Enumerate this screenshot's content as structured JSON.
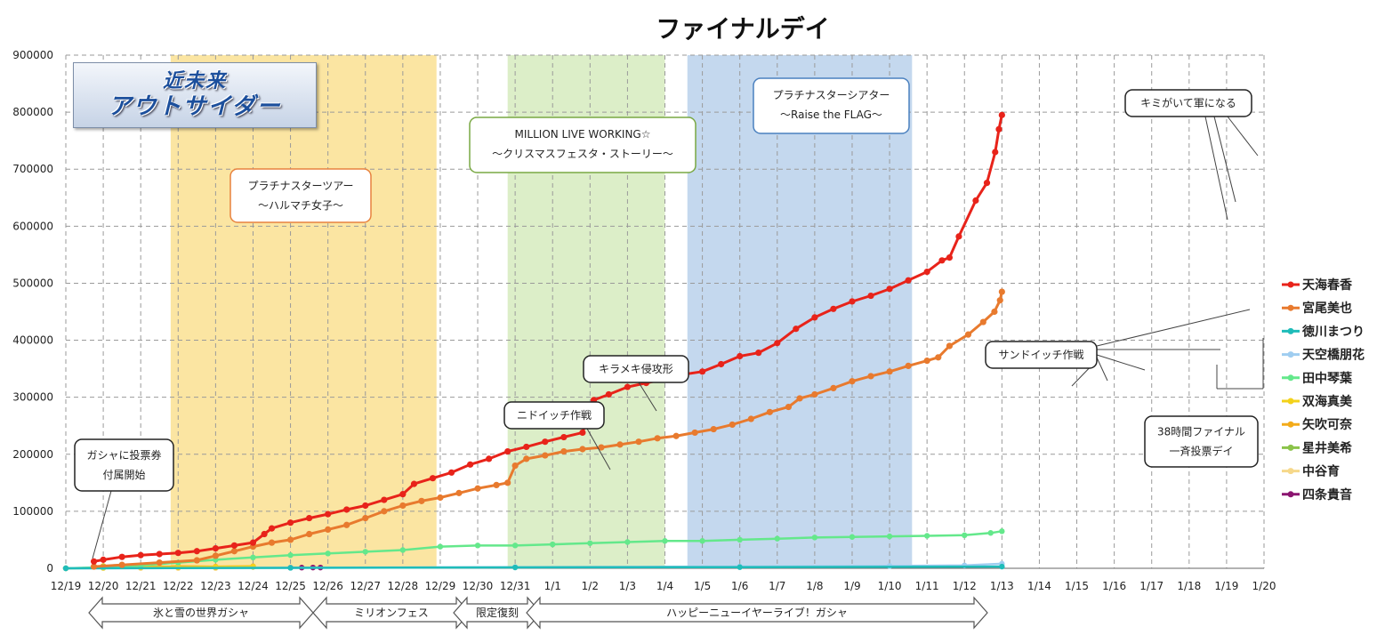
{
  "chart_data": {
    "type": "line",
    "title": "ファイナルデイ",
    "ylim": [
      0,
      900000
    ],
    "yticks": [
      "0",
      "100000",
      "200000",
      "300000",
      "400000",
      "500000",
      "600000",
      "700000",
      "800000",
      "900000"
    ],
    "categories": [
      "12/19",
      "12/20",
      "12/21",
      "12/22",
      "12/23",
      "12/24",
      "12/25",
      "12/26",
      "12/27",
      "12/28",
      "12/29",
      "12/30",
      "12/31",
      "1/1",
      "1/2",
      "1/3",
      "1/4",
      "1/5",
      "1/6",
      "1/7",
      "1/8",
      "1/9",
      "1/10",
      "1/11",
      "1/12",
      "1/13",
      "1/14",
      "1/15",
      "1/16",
      "1/17",
      "1/18",
      "1/19",
      "1/20"
    ],
    "grid": true,
    "legend_position": "right",
    "series": [
      {
        "name": "天海春香",
        "color": "#e8231a",
        "points": [
          [
            0.75,
            12000
          ],
          [
            1,
            15000
          ],
          [
            1.5,
            20000
          ],
          [
            2,
            23000
          ],
          [
            2.5,
            25000
          ],
          [
            3,
            27000
          ],
          [
            3.5,
            30000
          ],
          [
            4,
            35000
          ],
          [
            4.5,
            40000
          ],
          [
            5,
            45000
          ],
          [
            5.3,
            60000
          ],
          [
            5.5,
            70000
          ],
          [
            6,
            80000
          ],
          [
            6.5,
            88000
          ],
          [
            7,
            95000
          ],
          [
            7.5,
            103000
          ],
          [
            8,
            110000
          ],
          [
            8.5,
            120000
          ],
          [
            9,
            130000
          ],
          [
            9.3,
            148000
          ],
          [
            9.8,
            158000
          ],
          [
            10.3,
            168000
          ],
          [
            10.8,
            182000
          ],
          [
            11.3,
            192000
          ],
          [
            11.8,
            205000
          ],
          [
            12.3,
            213000
          ],
          [
            12.8,
            222000
          ],
          [
            13.3,
            230000
          ],
          [
            13.8,
            238000
          ],
          [
            14.1,
            295000
          ],
          [
            14.5,
            305000
          ],
          [
            15,
            318000
          ],
          [
            15.5,
            325000
          ],
          [
            16,
            332000
          ],
          [
            16.5,
            340000
          ],
          [
            17,
            345000
          ],
          [
            17.5,
            358000
          ],
          [
            18,
            372000
          ],
          [
            18.5,
            378000
          ],
          [
            19,
            395000
          ],
          [
            19.5,
            420000
          ],
          [
            20,
            440000
          ],
          [
            20.5,
            455000
          ],
          [
            21,
            468000
          ],
          [
            21.5,
            478000
          ],
          [
            22,
            490000
          ],
          [
            22.5,
            505000
          ],
          [
            23,
            520000
          ],
          [
            23.4,
            540000
          ],
          [
            23.6,
            545000
          ],
          [
            23.85,
            582000
          ],
          [
            24.3,
            645000
          ],
          [
            24.6,
            676000
          ],
          [
            24.82,
            730000
          ],
          [
            24.92,
            770000
          ],
          [
            25,
            795000
          ]
        ]
      },
      {
        "name": "宮尾美也",
        "color": "#e87a2e",
        "points": [
          [
            0.75,
            3000
          ],
          [
            1.5,
            6000
          ],
          [
            2.5,
            10000
          ],
          [
            3.5,
            14000
          ],
          [
            4,
            22000
          ],
          [
            4.5,
            30000
          ],
          [
            5,
            38000
          ],
          [
            5.5,
            45000
          ],
          [
            6,
            50000
          ],
          [
            6.5,
            60000
          ],
          [
            7,
            68000
          ],
          [
            7.5,
            76000
          ],
          [
            8,
            88000
          ],
          [
            8.5,
            100000
          ],
          [
            9,
            110000
          ],
          [
            9.5,
            118000
          ],
          [
            10,
            124000
          ],
          [
            10.5,
            132000
          ],
          [
            11,
            140000
          ],
          [
            11.5,
            146000
          ],
          [
            11.8,
            150000
          ],
          [
            12,
            180000
          ],
          [
            12.3,
            192000
          ],
          [
            12.8,
            198000
          ],
          [
            13.3,
            205000
          ],
          [
            13.8,
            209000
          ],
          [
            14.3,
            212000
          ],
          [
            14.8,
            217000
          ],
          [
            15.3,
            222000
          ],
          [
            15.8,
            228000
          ],
          [
            16.3,
            232000
          ],
          [
            16.8,
            238000
          ],
          [
            17.3,
            244000
          ],
          [
            17.8,
            252000
          ],
          [
            18.3,
            262000
          ],
          [
            18.8,
            274000
          ],
          [
            19.3,
            283000
          ],
          [
            19.6,
            298000
          ],
          [
            20,
            305000
          ],
          [
            20.5,
            316000
          ],
          [
            21,
            328000
          ],
          [
            21.5,
            337000
          ],
          [
            22,
            345000
          ],
          [
            22.5,
            355000
          ],
          [
            23,
            364000
          ],
          [
            23.3,
            370000
          ],
          [
            23.6,
            390000
          ],
          [
            24.1,
            410000
          ],
          [
            24.5,
            432000
          ],
          [
            24.8,
            450000
          ],
          [
            24.95,
            470000
          ],
          [
            25,
            485000
          ]
        ]
      },
      {
        "name": "徳川まつり",
        "color": "#1fbcb9",
        "points": [
          [
            0,
            0
          ],
          [
            6,
            800
          ],
          [
            12,
            1500
          ],
          [
            18,
            2000
          ],
          [
            25,
            3000
          ]
        ]
      },
      {
        "name": "天空橋朋花",
        "color": "#9fcdf0",
        "points": [
          [
            0,
            0
          ],
          [
            6,
            1000
          ],
          [
            12,
            2000
          ],
          [
            18,
            3000
          ],
          [
            22,
            4000
          ],
          [
            24,
            5000
          ],
          [
            25,
            8000
          ]
        ]
      },
      {
        "name": "田中琴葉",
        "color": "#64e88b",
        "points": [
          [
            0,
            0
          ],
          [
            1,
            2000
          ],
          [
            2,
            5000
          ],
          [
            3,
            10000
          ],
          [
            4,
            15000
          ],
          [
            5,
            19000
          ],
          [
            6,
            23000
          ],
          [
            7,
            26000
          ],
          [
            8,
            29000
          ],
          [
            9,
            32000
          ],
          [
            10,
            38000
          ],
          [
            11,
            40000
          ],
          [
            12,
            40000
          ],
          [
            13,
            42000
          ],
          [
            14,
            44000
          ],
          [
            15,
            46000
          ],
          [
            16,
            48000
          ],
          [
            17,
            48000
          ],
          [
            18,
            50000
          ],
          [
            19,
            52000
          ],
          [
            20,
            54000
          ],
          [
            21,
            55000
          ],
          [
            22,
            56000
          ],
          [
            23,
            57000
          ],
          [
            24,
            58000
          ],
          [
            24.7,
            62000
          ],
          [
            25,
            65000
          ]
        ]
      },
      {
        "name": "双海真美",
        "color": "#f3d21a",
        "points": [
          [
            0,
            0
          ],
          [
            1,
            1000
          ],
          [
            2,
            2000
          ],
          [
            3,
            2000
          ],
          [
            4,
            2500
          ],
          [
            5,
            3000
          ]
        ]
      },
      {
        "name": "矢吹可奈",
        "color": "#f3ab1a",
        "points": [
          [
            1,
            4000
          ],
          [
            2,
            3000
          ],
          [
            3,
            3500
          ],
          [
            4,
            3000
          ],
          [
            5,
            3500
          ]
        ]
      },
      {
        "name": "星井美希",
        "color": "#8bc34a",
        "points": [
          [
            0,
            0
          ],
          [
            1,
            1000
          ],
          [
            2,
            2000
          ],
          [
            3,
            2000
          ],
          [
            4,
            2000
          ],
          [
            5,
            2500
          ]
        ]
      },
      {
        "name": "中谷育",
        "color": "#f6d88a",
        "points": [
          [
            1,
            500
          ],
          [
            2,
            500
          ],
          [
            3,
            500
          ],
          [
            4,
            500
          ]
        ]
      },
      {
        "name": "四条貴音",
        "color": "#8b1570",
        "points": [
          [
            6,
            1000
          ],
          [
            6.3,
            1200
          ],
          [
            6.6,
            1300
          ],
          [
            6.8,
            1300
          ]
        ]
      }
    ],
    "bands": [
      {
        "start": 2.8,
        "end": 9.9,
        "color": "#fbe5a2",
        "label": [
          "プラチナスターツアー",
          "〜ハルマチ女子〜"
        ],
        "border": "#e8823e"
      },
      {
        "start": 11.8,
        "end": 16.0,
        "color": "#dceec8",
        "label": [
          "MILLION LIVE WORKING☆",
          "〜クリスマスフェスタ・ストーリー〜"
        ],
        "border": "#79a843"
      },
      {
        "start": 16.6,
        "end": 22.6,
        "color": "#c4d8ee",
        "label": [
          "プラチナスターシアター",
          "〜Raise the FLAG〜"
        ],
        "border": "#4a80bf"
      }
    ],
    "callouts": [
      {
        "text": [
          "ガシャに投票券",
          "付属開始"
        ]
      },
      {
        "text": [
          "ニドイッチ作戦"
        ]
      },
      {
        "text": [
          "キラメキ侵攻形"
        ]
      },
      {
        "text": [
          "キミがいて軍になる"
        ]
      },
      {
        "text": [
          "サンドイッチ作戦"
        ]
      },
      {
        "text": [
          "38時間ファイナル",
          "一斉投票デイ"
        ]
      }
    ],
    "periods": [
      {
        "label": "氷と雪の世界ガシャ"
      },
      {
        "label": "ミリオンフェス"
      },
      {
        "label": "限定復刻"
      },
      {
        "label": "ハッピーニューイヤーライブ！ガシャ"
      }
    ]
  },
  "logo": {
    "line1": "近未来",
    "line2": "アウトサイダー"
  }
}
